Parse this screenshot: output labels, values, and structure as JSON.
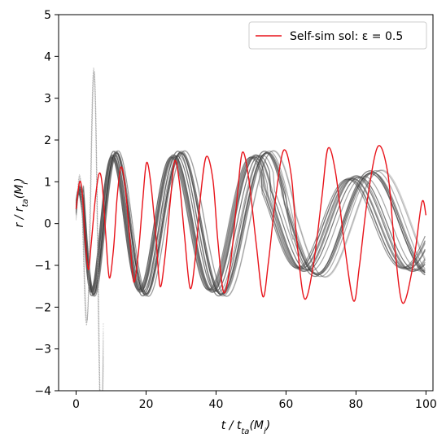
{
  "chart_data": {
    "type": "line",
    "title": "",
    "xlabel": "t / t_ta(M_i)",
    "ylabel": "r / r_ta(M_i)",
    "xlim": [
      -5,
      102
    ],
    "ylim": [
      -4,
      5
    ],
    "xticks": [
      0,
      20,
      40,
      60,
      80,
      100
    ],
    "yticks": [
      -4,
      -3,
      -2,
      -1,
      0,
      1,
      2,
      3,
      4,
      5
    ],
    "grid": false,
    "legend": {
      "placement": "top-right",
      "entries": [
        "Self-sim sol: ε = 0.5"
      ]
    },
    "series": [
      {
        "name": "Self-sim sol: ε = 0.5",
        "color": "#e8141b",
        "x": [
          0,
          1.0,
          1.8,
          2.5,
          3.5,
          4.3,
          5.5,
          6.6,
          7.5,
          8.5,
          9.5,
          10.7,
          11.7,
          12.8,
          14.0,
          15.4,
          16.5,
          17.8,
          19.0,
          20.1,
          21.3,
          22.8,
          24.0,
          25.4,
          27.0,
          28.2,
          29.5,
          31.0,
          32.6,
          34.1,
          35.5,
          37.2,
          39.1,
          40.5,
          42.2,
          44.2,
          46.0,
          47.5,
          49.3,
          51.5,
          53.4,
          55.0,
          57.0,
          59.3,
          61.5,
          63.2,
          65.3,
          67.8,
          70.2,
          72.0,
          74.2,
          76.7,
          79.3,
          81.0,
          83.3,
          86.3,
          89.1,
          91.0,
          93.3,
          96.3,
          98.8,
          100.0
        ],
        "y": [
          0.35,
          1.0,
          0.7,
          -0.3,
          -1.1,
          -0.5,
          0.6,
          1.2,
          0.9,
          -0.3,
          -1.3,
          -0.6,
          0.6,
          1.35,
          0.9,
          -0.4,
          -1.4,
          -0.7,
          0.5,
          1.45,
          1.0,
          -0.3,
          -1.5,
          -0.8,
          0.6,
          1.5,
          1.0,
          -0.3,
          -1.55,
          -0.8,
          0.6,
          1.6,
          1.05,
          -0.4,
          -1.65,
          -0.9,
          0.6,
          1.7,
          1.1,
          -0.5,
          -1.75,
          -0.9,
          0.6,
          1.75,
          1.15,
          -0.5,
          -1.8,
          -1.0,
          0.6,
          1.8,
          1.2,
          -0.5,
          -1.85,
          -1.0,
          0.6,
          1.85,
          1.2,
          -0.5,
          -1.9,
          -1.0,
          0.5,
          0.2
        ]
      }
    ]
  }
}
